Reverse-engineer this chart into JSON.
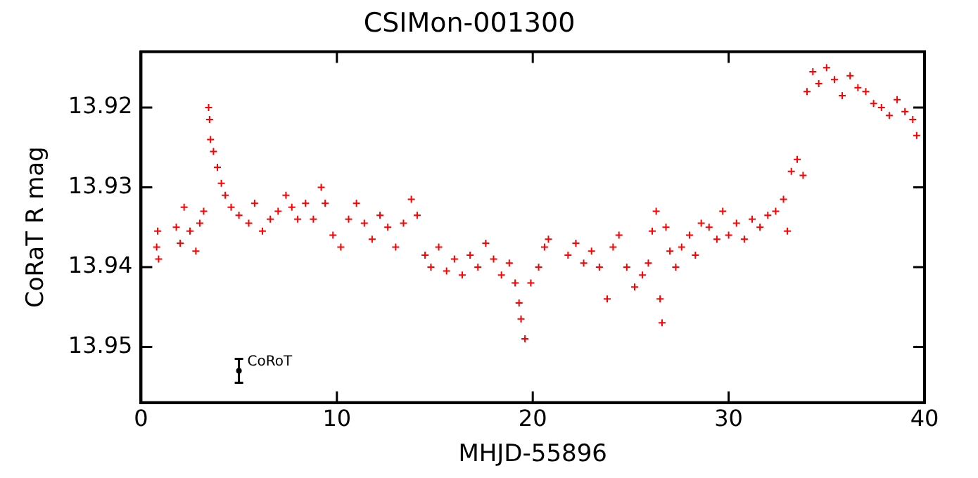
{
  "chart_data": {
    "type": "scatter",
    "title": "CSIMon-001300",
    "xlabel": "MHJD-55896",
    "ylabel": "CoRaT R mag",
    "xlim": [
      0,
      40
    ],
    "xticks": [
      0,
      10,
      20,
      30,
      40
    ],
    "ylim": [
      13.957,
      13.913
    ],
    "yticks": [
      13.92,
      13.93,
      13.94,
      13.95
    ],
    "grid": false,
    "legend": false,
    "marker": "cross",
    "series": [
      {
        "color": "#ff0000",
        "x": [
          0.8,
          0.85,
          0.9,
          1.8,
          2.0,
          2.2,
          2.5,
          2.8,
          3.0,
          3.2,
          3.45,
          3.5,
          3.55,
          3.7,
          3.9,
          4.1,
          4.3,
          4.6,
          5.0,
          5.5,
          5.8,
          6.2,
          6.6,
          7.0,
          7.4,
          7.7,
          8.0,
          8.4,
          8.8,
          9.2,
          9.4,
          9.8,
          10.2,
          10.6,
          11.0,
          11.4,
          11.8,
          12.2,
          12.6,
          13.0,
          13.4,
          13.8,
          14.1,
          14.5,
          14.8,
          15.2,
          15.6,
          16.0,
          16.4,
          16.8,
          17.2,
          17.6,
          18.0,
          18.4,
          18.8,
          19.1,
          19.3,
          19.4,
          19.6,
          19.9,
          20.3,
          20.6,
          20.8,
          21.8,
          22.2,
          22.6,
          23.0,
          23.4,
          23.8,
          24.1,
          24.4,
          24.8,
          25.2,
          25.6,
          25.9,
          26.1,
          26.3,
          26.5,
          26.6,
          26.8,
          27.0,
          27.3,
          27.6,
          28.0,
          28.3,
          28.6,
          29.0,
          29.4,
          29.7,
          30.0,
          30.4,
          30.8,
          31.2,
          31.6,
          32.0,
          32.4,
          32.8,
          33.0,
          33.2,
          33.5,
          33.8,
          34.0,
          34.3,
          34.6,
          35.0,
          35.4,
          35.8,
          36.2,
          36.6,
          37.0,
          37.4,
          37.8,
          38.2,
          38.6,
          39.0,
          39.4,
          39.6
        ],
        "values": [
          13.9375,
          13.9355,
          13.939,
          13.935,
          13.937,
          13.9325,
          13.9355,
          13.938,
          13.9345,
          13.933,
          13.92,
          13.9215,
          13.924,
          13.9255,
          13.9275,
          13.9295,
          13.931,
          13.9325,
          13.9335,
          13.9345,
          13.932,
          13.9355,
          13.934,
          13.933,
          13.931,
          13.9325,
          13.934,
          13.932,
          13.934,
          13.93,
          13.932,
          13.936,
          13.9375,
          13.934,
          13.932,
          13.9345,
          13.9365,
          13.9335,
          13.935,
          13.9375,
          13.9345,
          13.9315,
          13.9335,
          13.9385,
          13.94,
          13.9375,
          13.9405,
          13.939,
          13.941,
          13.9385,
          13.94,
          13.937,
          13.939,
          13.941,
          13.9395,
          13.942,
          13.9445,
          13.9465,
          13.949,
          13.942,
          13.94,
          13.9375,
          13.9365,
          13.9385,
          13.937,
          13.9395,
          13.938,
          13.94,
          13.944,
          13.9375,
          13.936,
          13.94,
          13.9425,
          13.941,
          13.9395,
          13.9355,
          13.933,
          13.944,
          13.947,
          13.935,
          13.938,
          13.94,
          13.9375,
          13.936,
          13.9385,
          13.9345,
          13.935,
          13.9365,
          13.933,
          13.936,
          13.9345,
          13.9365,
          13.934,
          13.935,
          13.9335,
          13.933,
          13.9315,
          13.9355,
          13.928,
          13.9265,
          13.9285,
          13.918,
          13.9155,
          13.917,
          13.915,
          13.9165,
          13.9185,
          13.916,
          13.9175,
          13.918,
          13.9195,
          13.92,
          13.921,
          13.919,
          13.9205,
          13.9215,
          13.9235
        ]
      },
      {
        "name": "CoRoT",
        "color": "#000000",
        "marker": "circle",
        "x": [
          5
        ],
        "values": [
          13.953
        ],
        "errors": [
          0.0015
        ]
      }
    ]
  }
}
